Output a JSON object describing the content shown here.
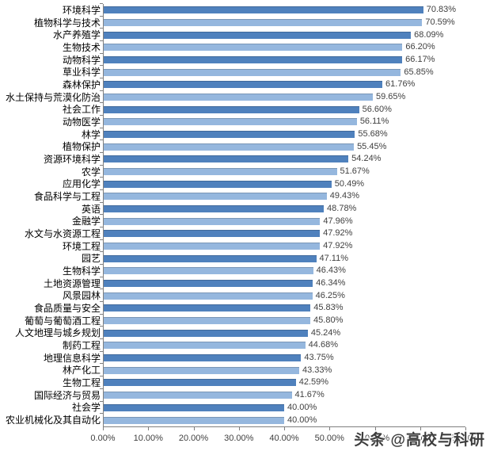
{
  "chart_data": {
    "type": "bar",
    "orientation": "horizontal",
    "title": "",
    "xlabel": "",
    "ylabel": "",
    "xlim": [
      0,
      80
    ],
    "grid": false,
    "legend": false,
    "bar_colors": {
      "dark": "#4F81BD",
      "light": "#95B7DE"
    },
    "color_pattern": "alternating dark/light starting with dark",
    "x_ticks": [
      "0.00%",
      "10.00%",
      "20.00%",
      "30.00%",
      "40.00%",
      "50.00%",
      "60.00%",
      "70.00%",
      "80.00%"
    ],
    "categories": [
      "环境科学",
      "植物科学与技术",
      "水产养殖学",
      "生物技术",
      "动物科学",
      "草业科学",
      "森林保护",
      "水土保持与荒漠化防治",
      "社会工作",
      "动物医学",
      "林学",
      "植物保护",
      "资源环境科学",
      "农学",
      "应用化学",
      "食品科学与工程",
      "英语",
      "金融学",
      "水文与水资源工程",
      "环境工程",
      "园艺",
      "生物科学",
      "土地资源管理",
      "风景园林",
      "食品质量与安全",
      "葡萄与葡萄酒工程",
      "人文地理与城乡规划",
      "制药工程",
      "地理信息科学",
      "林产化工",
      "生物工程",
      "国际经济与贸易",
      "社会学",
      "农业机械化及其自动化"
    ],
    "values": [
      70.83,
      70.59,
      68.09,
      66.2,
      66.17,
      65.85,
      61.76,
      59.65,
      56.6,
      56.11,
      55.68,
      55.45,
      54.24,
      51.67,
      50.49,
      49.43,
      48.78,
      47.96,
      47.92,
      47.92,
      47.11,
      46.43,
      46.34,
      46.25,
      45.83,
      45.8,
      45.24,
      44.68,
      43.75,
      43.33,
      42.59,
      41.67,
      40.0,
      40.0
    ],
    "value_labels": [
      "70.83%",
      "70.59%",
      "68.09%",
      "66.20%",
      "66.17%",
      "65.85%",
      "61.76%",
      "59.65%",
      "56.60%",
      "56.11%",
      "55.68%",
      "55.45%",
      "54.24%",
      "51.67%",
      "50.49%",
      "49.43%",
      "48.78%",
      "47.96%",
      "47.92%",
      "47.92%",
      "47.11%",
      "46.43%",
      "46.34%",
      "46.25%",
      "45.83%",
      "45.80%",
      "45.24%",
      "44.68%",
      "43.75%",
      "43.33%",
      "42.59%",
      "41.67%",
      "40.00%",
      "40.00%"
    ]
  },
  "watermark": {
    "text": "头条 @高校与科研"
  }
}
